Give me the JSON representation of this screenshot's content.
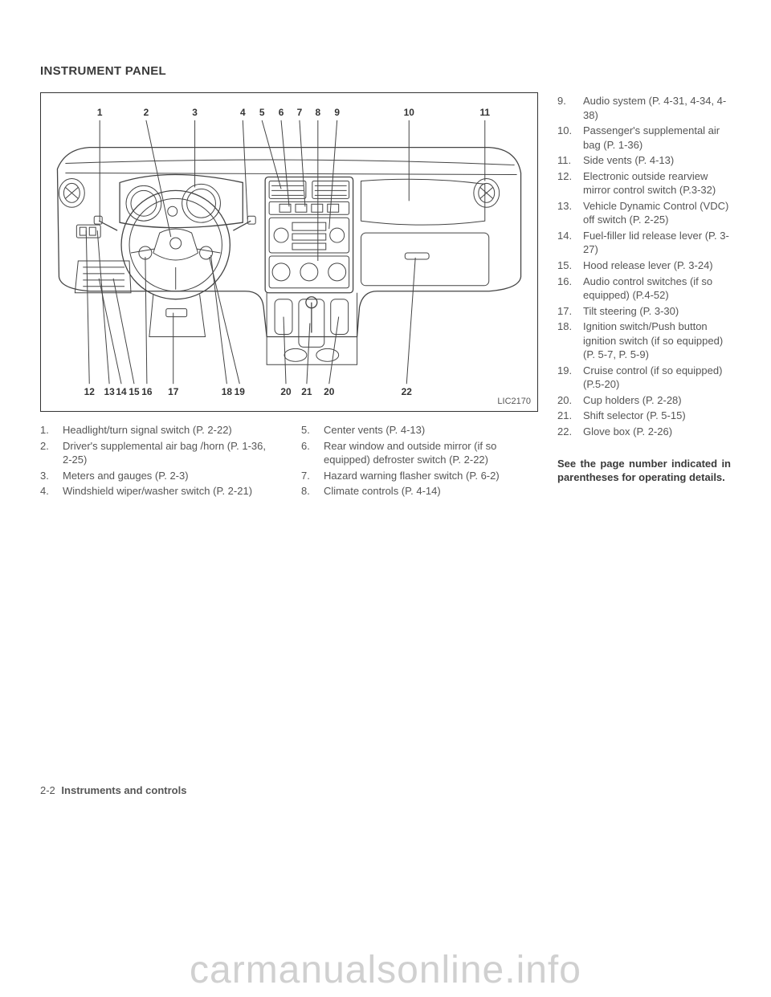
{
  "section_title": "INSTRUMENT PANEL",
  "diagram": {
    "image_code": "LIC2170",
    "top_labels": [
      "1",
      "2",
      "3",
      "4",
      "5",
      "6",
      "7",
      "8",
      "9",
      "10",
      "11"
    ],
    "bottom_labels": [
      "12",
      "13",
      "14",
      "15",
      "16",
      "17",
      "18",
      "19",
      "20",
      "21",
      "20",
      "22"
    ],
    "top_x": [
      73,
      131,
      192,
      252,
      276,
      300,
      323,
      346,
      370,
      460,
      555
    ],
    "bottom_x": [
      60,
      85,
      100,
      116,
      132,
      165,
      232,
      248,
      306,
      332,
      360,
      457
    ]
  },
  "left_list_a": [
    {
      "n": "1.",
      "t": "Headlight/turn signal switch (P. 2-22)"
    },
    {
      "n": "2.",
      "t": "Driver's supplemental air bag /horn (P. 1-36, 2-25)"
    },
    {
      "n": "3.",
      "t": "Meters and gauges (P. 2-3)"
    },
    {
      "n": "4.",
      "t": "Windshield wiper/washer switch (P. 2-21)"
    }
  ],
  "left_list_b": [
    {
      "n": "5.",
      "t": "Center vents (P. 4-13)"
    },
    {
      "n": "6.",
      "t": "Rear window and outside mirror (if so equipped) defroster switch (P. 2-22)"
    },
    {
      "n": "7.",
      "t": "Hazard warning flasher switch (P. 6-2)"
    },
    {
      "n": "8.",
      "t": "Climate controls (P. 4-14)"
    }
  ],
  "right_list": [
    {
      "n": "9.",
      "t": "Audio system (P. 4-31, 4-34, 4-38)"
    },
    {
      "n": "10.",
      "t": "Passenger's supplemental air bag (P. 1-36)"
    },
    {
      "n": "11.",
      "t": "Side vents (P. 4-13)"
    },
    {
      "n": "12.",
      "t": "Electronic outside rearview mirror control switch (P.3-32)"
    },
    {
      "n": "13.",
      "t": "Vehicle Dynamic Control (VDC) off switch (P. 2-25)"
    },
    {
      "n": "14.",
      "t": "Fuel-filler lid release lever (P. 3-27)"
    },
    {
      "n": "15.",
      "t": "Hood release lever (P. 3-24)"
    },
    {
      "n": "16.",
      "t": "Audio control switches (if so equipped) (P.4-52)"
    },
    {
      "n": "17.",
      "t": "Tilt steering (P. 3-30)"
    },
    {
      "n": "18.",
      "t": "Ignition switch/Push button ignition switch (if so equipped) (P. 5-7, P. 5-9)"
    },
    {
      "n": "19.",
      "t": "Cruise control (if so equipped) (P.5-20)"
    },
    {
      "n": "20.",
      "t": "Cup holders (P. 2-28)"
    },
    {
      "n": "21.",
      "t": "Shift selector (P. 5-15)"
    },
    {
      "n": "22.",
      "t": "Glove box (P. 2-26)"
    }
  ],
  "footer_note": "See the page number indicated in parentheses for operating details.",
  "page_number": "2-2",
  "page_section": "Instruments and controls",
  "watermark": "carmanualsonline.info"
}
